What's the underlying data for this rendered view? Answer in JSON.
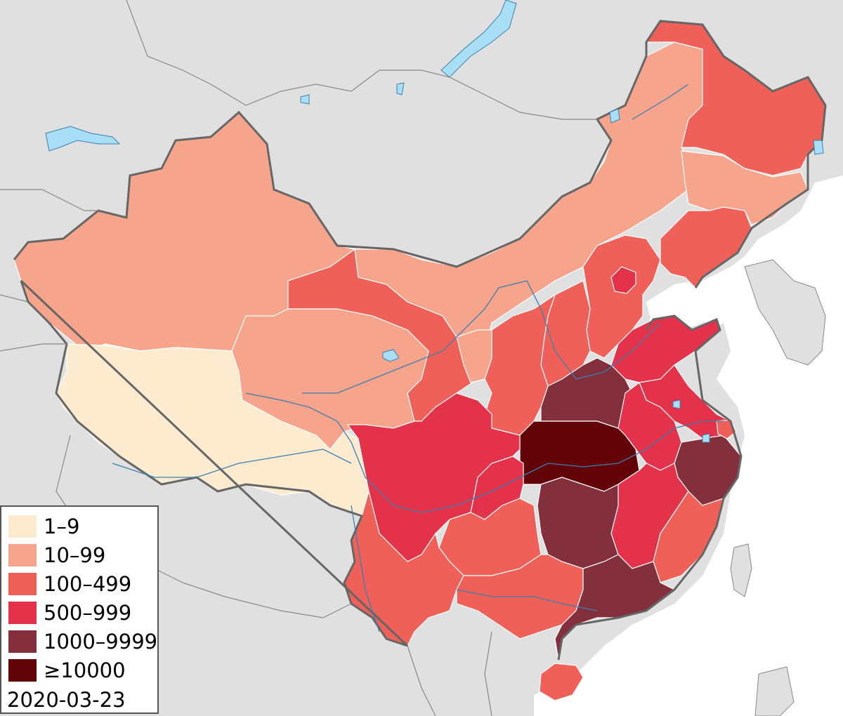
{
  "map": {
    "date": "2020-03-23",
    "colors": {
      "background": "#e0e0e0",
      "water": "#a9dff6",
      "border": "#666666",
      "province_line": "#ffffff"
    },
    "legend": [
      {
        "label": "1–9",
        "color": "#fdebd0"
      },
      {
        "label": "10–99",
        "color": "#f6a48c"
      },
      {
        "label": "100–499",
        "color": "#ee6058"
      },
      {
        "label": "500–999",
        "color": "#e4324a"
      },
      {
        "label": "1000–9999",
        "color": "#84303c"
      },
      {
        "label": "≥10000",
        "color": "#620408"
      }
    ]
  }
}
